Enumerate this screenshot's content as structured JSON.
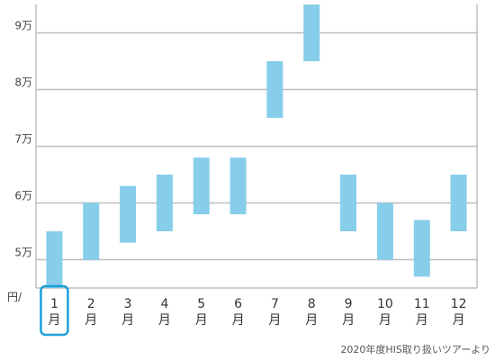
{
  "chart_data": {
    "type": "bar",
    "subtype": "floating-range",
    "categories": [
      {
        "num": "1",
        "suffix": "月"
      },
      {
        "num": "2",
        "suffix": "月"
      },
      {
        "num": "3",
        "suffix": "月"
      },
      {
        "num": "4",
        "suffix": "月"
      },
      {
        "num": "5",
        "suffix": "月"
      },
      {
        "num": "6",
        "suffix": "月"
      },
      {
        "num": "7",
        "suffix": "月"
      },
      {
        "num": "8",
        "suffix": "月"
      },
      {
        "num": "9",
        "suffix": "月"
      },
      {
        "num": "10",
        "suffix": "月"
      },
      {
        "num": "11",
        "suffix": "月"
      },
      {
        "num": "12",
        "suffix": "月"
      }
    ],
    "ranges": [
      [
        45000,
        55000
      ],
      [
        50000,
        60000
      ],
      [
        53000,
        63000
      ],
      [
        55000,
        65000
      ],
      [
        58000,
        68000
      ],
      [
        58000,
        68000
      ],
      [
        75000,
        85000
      ],
      [
        85000,
        95000
      ],
      [
        55000,
        65000
      ],
      [
        50000,
        60000
      ],
      [
        47000,
        57000
      ],
      [
        55000,
        65000
      ]
    ],
    "yticks": [
      {
        "value": 50000,
        "label": "5万"
      },
      {
        "value": 60000,
        "label": "6万"
      },
      {
        "value": 70000,
        "label": "7万"
      },
      {
        "value": 80000,
        "label": "8万"
      },
      {
        "value": 90000,
        "label": "9万"
      }
    ],
    "ylim": [
      45000,
      95000
    ],
    "grid": true,
    "highlighted_category_index": 0,
    "unit_label": "円/",
    "source_note": "2020年度HIS取り扱いツアーより",
    "colors": {
      "bar": "#87CEEB",
      "grid": "#bdbdbd",
      "highlight": "#1aa0d8"
    }
  }
}
